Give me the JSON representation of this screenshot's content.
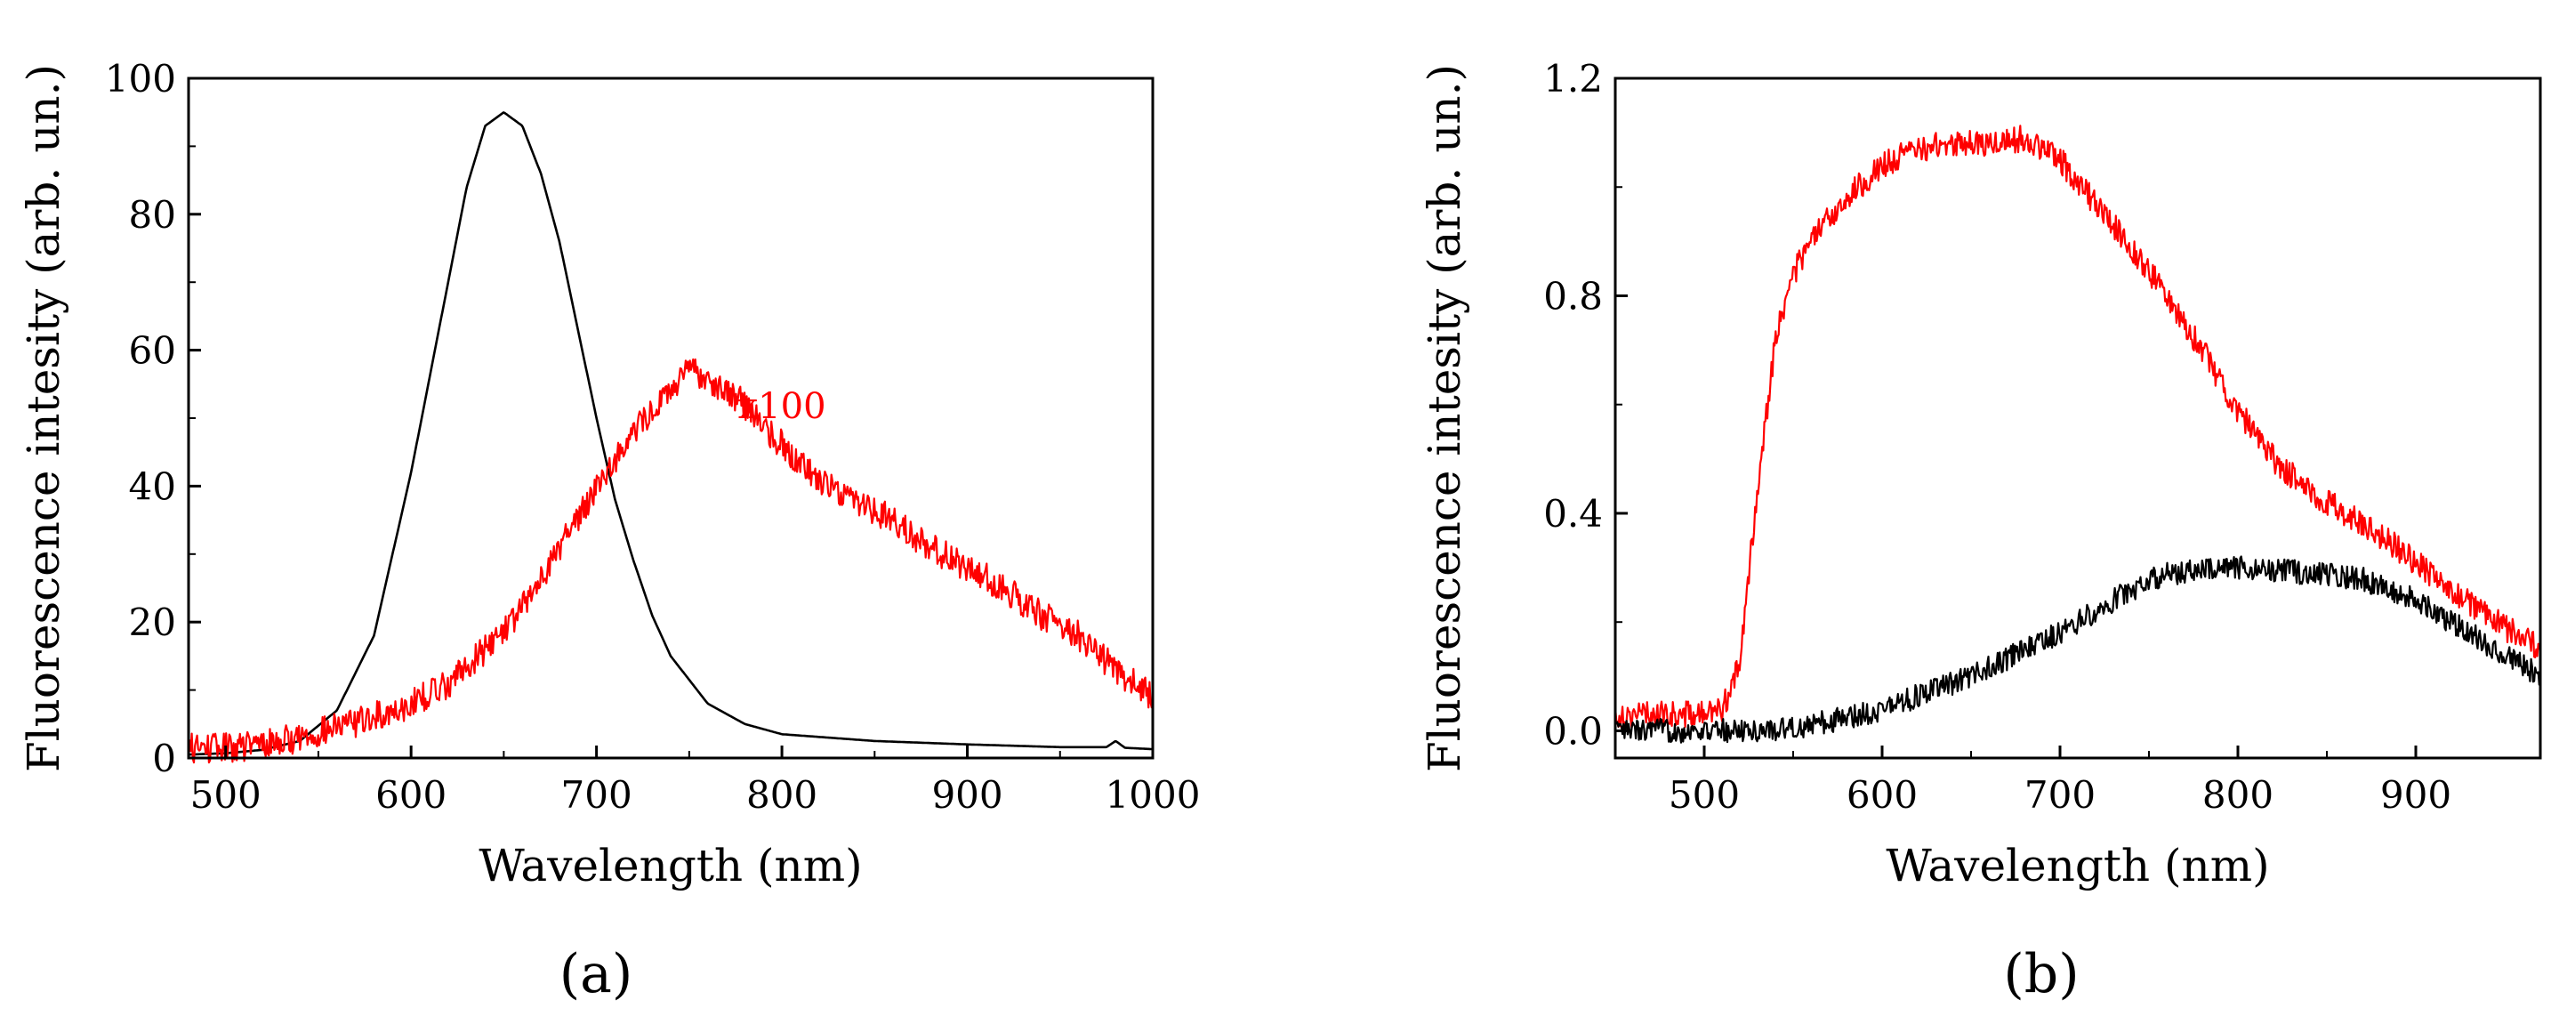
{
  "colors": {
    "red": "#ff0000",
    "black": "#000000"
  },
  "chart_data": [
    {
      "type": "line",
      "panel_label": "(a)",
      "xlabel": "Wavelength (nm)",
      "ylabel": "Fluorescence intesity (arb. un.)",
      "xlim": [
        480,
        1000
      ],
      "ylim": [
        0,
        100
      ],
      "xticks": [
        500,
        600,
        700,
        800,
        900,
        1000
      ],
      "yticks": [
        0,
        20,
        40,
        60,
        80,
        100
      ],
      "annotations": [
        {
          "text": "x100",
          "x": 800,
          "y": 50,
          "color": "#ff0000"
        }
      ],
      "series": [
        {
          "name": "black",
          "color": "#000000",
          "noise": 0,
          "x": [
            480,
            500,
            520,
            540,
            560,
            580,
            600,
            610,
            620,
            630,
            640,
            650,
            660,
            670,
            680,
            690,
            700,
            710,
            720,
            730,
            740,
            760,
            780,
            800,
            850,
            900,
            950,
            975,
            980,
            985,
            1000
          ],
          "y": [
            0.5,
            0.7,
            1.2,
            2.5,
            7,
            18,
            42,
            56,
            70,
            84,
            93,
            95,
            93,
            86,
            76,
            63,
            50,
            38,
            29,
            21,
            15,
            8,
            5,
            3.5,
            2.5,
            2,
            1.6,
            1.6,
            2.5,
            1.5,
            1.3
          ]
        },
        {
          "name": "red (x100)",
          "color": "#ff0000",
          "noise": 2.2,
          "x": [
            480,
            500,
            520,
            540,
            560,
            580,
            600,
            620,
            640,
            660,
            680,
            700,
            720,
            740,
            750,
            760,
            780,
            800,
            820,
            840,
            860,
            880,
            900,
            920,
            940,
            960,
            980,
            1000
          ],
          "y": [
            1.5,
            1.5,
            2,
            3,
            4.5,
            6,
            8,
            11,
            16,
            22,
            31,
            40,
            48,
            54,
            57,
            56,
            52,
            46,
            41,
            38,
            35,
            31,
            28,
            25,
            21,
            18,
            13,
            9
          ]
        }
      ]
    },
    {
      "type": "line",
      "panel_label": "(b)",
      "xlabel": "Wavelength (nm)",
      "ylabel": "Fluorescence intesity (arb. un.)",
      "xlim": [
        450,
        970
      ],
      "ylim": [
        -0.05,
        1.2
      ],
      "xticks": [
        500,
        600,
        700,
        800,
        900
      ],
      "yticks": [
        0.0,
        0.4,
        0.8,
        1.2
      ],
      "ytick_labels": [
        "0.0",
        "0.4",
        "0.8",
        "1.2"
      ],
      "annotations": [],
      "series": [
        {
          "name": "red",
          "color": "#ff0000",
          "noise": 0.025,
          "x": [
            450,
            480,
            500,
            510,
            520,
            530,
            540,
            550,
            560,
            580,
            600,
            620,
            640,
            660,
            680,
            700,
            720,
            740,
            760,
            780,
            800,
            820,
            840,
            860,
            880,
            900,
            920,
            940,
            960,
            970
          ],
          "y": [
            0.03,
            0.03,
            0.03,
            0.04,
            0.12,
            0.45,
            0.72,
            0.84,
            0.9,
            0.98,
            1.04,
            1.07,
            1.08,
            1.08,
            1.09,
            1.05,
            0.97,
            0.89,
            0.8,
            0.7,
            0.59,
            0.5,
            0.44,
            0.4,
            0.36,
            0.31,
            0.26,
            0.21,
            0.17,
            0.15
          ]
        },
        {
          "name": "black",
          "color": "#000000",
          "noise": 0.022,
          "x": [
            450,
            500,
            530,
            560,
            600,
            650,
            700,
            740,
            760,
            800,
            840,
            870,
            900,
            930,
            960,
            970
          ],
          "y": [
            0,
            0,
            0,
            0.01,
            0.04,
            0.1,
            0.18,
            0.26,
            0.29,
            0.3,
            0.29,
            0.28,
            0.24,
            0.18,
            0.12,
            0.1
          ]
        }
      ]
    }
  ]
}
